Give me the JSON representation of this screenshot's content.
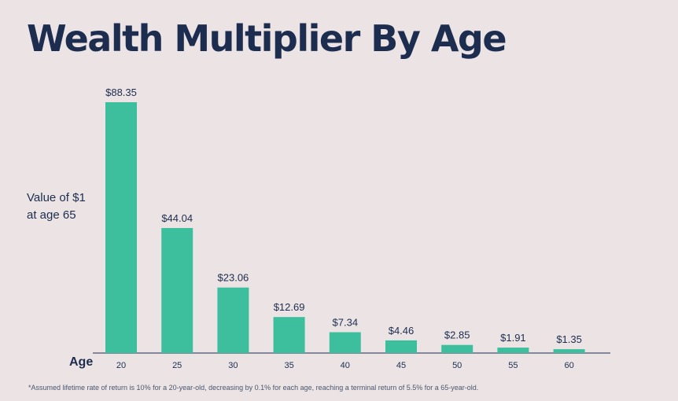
{
  "chart_data": {
    "type": "bar",
    "title": "Wealth Multiplier By Age",
    "ylabel_lines": [
      "Value of $1",
      "at age 65"
    ],
    "xlabel": "Age",
    "categories": [
      "20",
      "25",
      "30",
      "35",
      "40",
      "45",
      "50",
      "55",
      "60"
    ],
    "values": [
      88.35,
      44.04,
      23.06,
      12.69,
      7.34,
      4.46,
      2.85,
      1.91,
      1.35
    ],
    "value_labels": [
      "$88.35",
      "$44.04",
      "$23.06",
      "$12.69",
      "$7.34",
      "$4.46",
      "$2.85",
      "$1.91",
      "$1.35"
    ],
    "bar_color": "#3dbf9e",
    "grid": false,
    "legend": "none",
    "footnote": "*Assumed lifetime rate of return is 10% for a 20-year-old, decreasing by 0.1% for each age, reaching a terminal return of 5.5% for a 65-year-old."
  }
}
